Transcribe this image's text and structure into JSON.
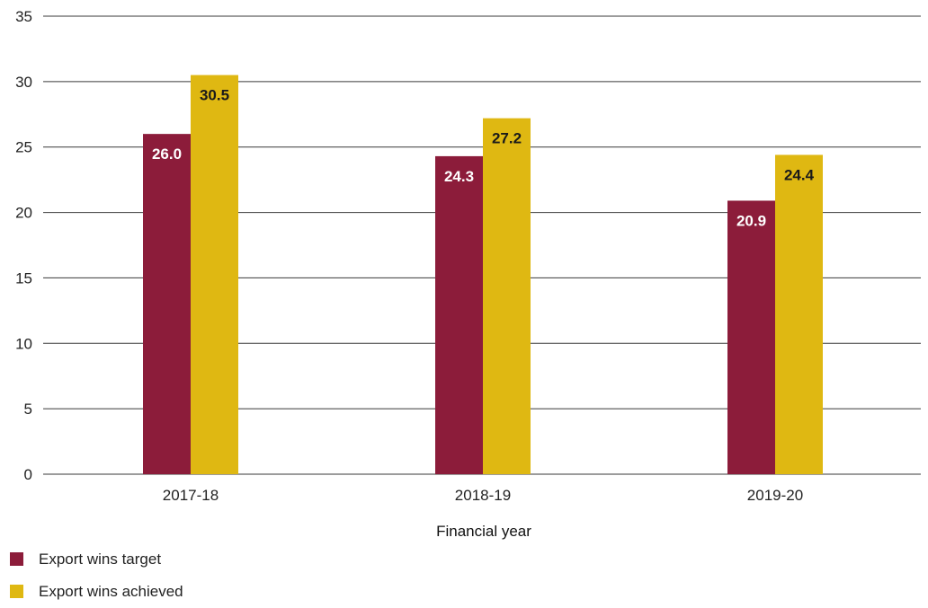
{
  "chart_data": {
    "type": "bar",
    "title": "",
    "xlabel": "Financial year",
    "ylabel": "",
    "categories": [
      "2017-18",
      "2018-19",
      "2019-20"
    ],
    "series": [
      {
        "name": "Export wins target",
        "values": [
          26.0,
          24.3,
          20.9
        ],
        "color": "#8c1c3a",
        "label_color": "#ffffff"
      },
      {
        "name": "Export wins achieved",
        "values": [
          30.5,
          27.2,
          24.4
        ],
        "color": "#dfb812",
        "label_color": "#1a1a1a"
      }
    ],
    "ylim": [
      0,
      35
    ],
    "yticks": [
      0,
      5,
      10,
      15,
      20,
      25,
      30,
      35
    ],
    "grid": true,
    "legend_position": "bottom-left"
  }
}
